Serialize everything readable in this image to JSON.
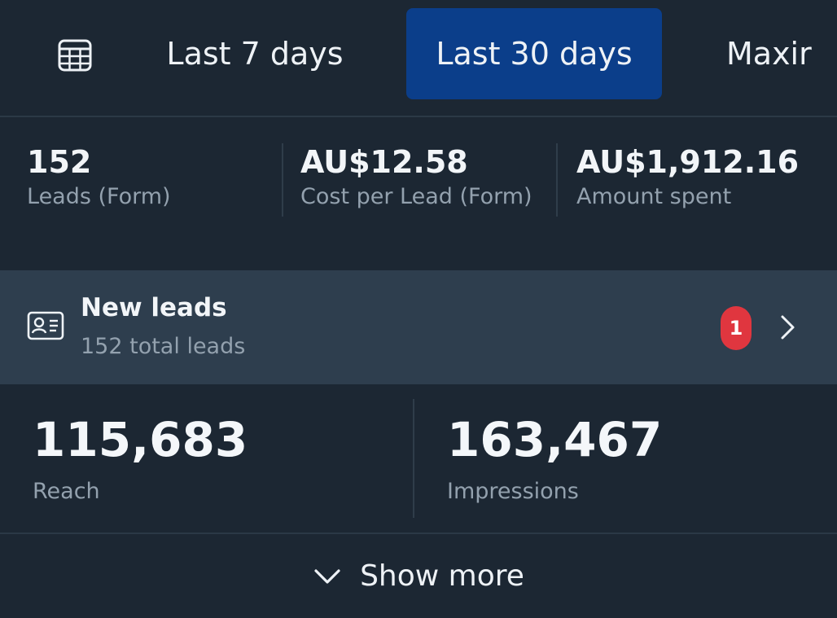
{
  "tabs": {
    "calendar_icon": "calendar-icon",
    "items": [
      {
        "label": "Last 7 days",
        "selected": false
      },
      {
        "label": "Last 30 days",
        "selected": true
      },
      {
        "label": "Maxir",
        "selected": false
      }
    ]
  },
  "summary": {
    "leads": {
      "value": "152",
      "label": "Leads (Form)"
    },
    "cost_per_lead": {
      "value": "AU$12.58",
      "label": "Cost per Lead (Form)"
    },
    "amount_spent": {
      "value": "AU$1,912.16",
      "label": "Amount spent"
    }
  },
  "new_leads": {
    "icon": "contact-card-icon",
    "title": "New leads",
    "subtitle": "152 total leads",
    "badge_count": "1"
  },
  "stats": {
    "reach": {
      "value": "115,683",
      "label": "Reach"
    },
    "impressions": {
      "value": "163,467",
      "label": "Impressions"
    }
  },
  "show_more": {
    "label": "Show more"
  },
  "colors": {
    "background": "#1c2733",
    "selected_tab": "#0b3e8a",
    "highlight_row": "#2e3e4e",
    "badge": "#e0363f",
    "secondary_text": "#93a1ae"
  }
}
